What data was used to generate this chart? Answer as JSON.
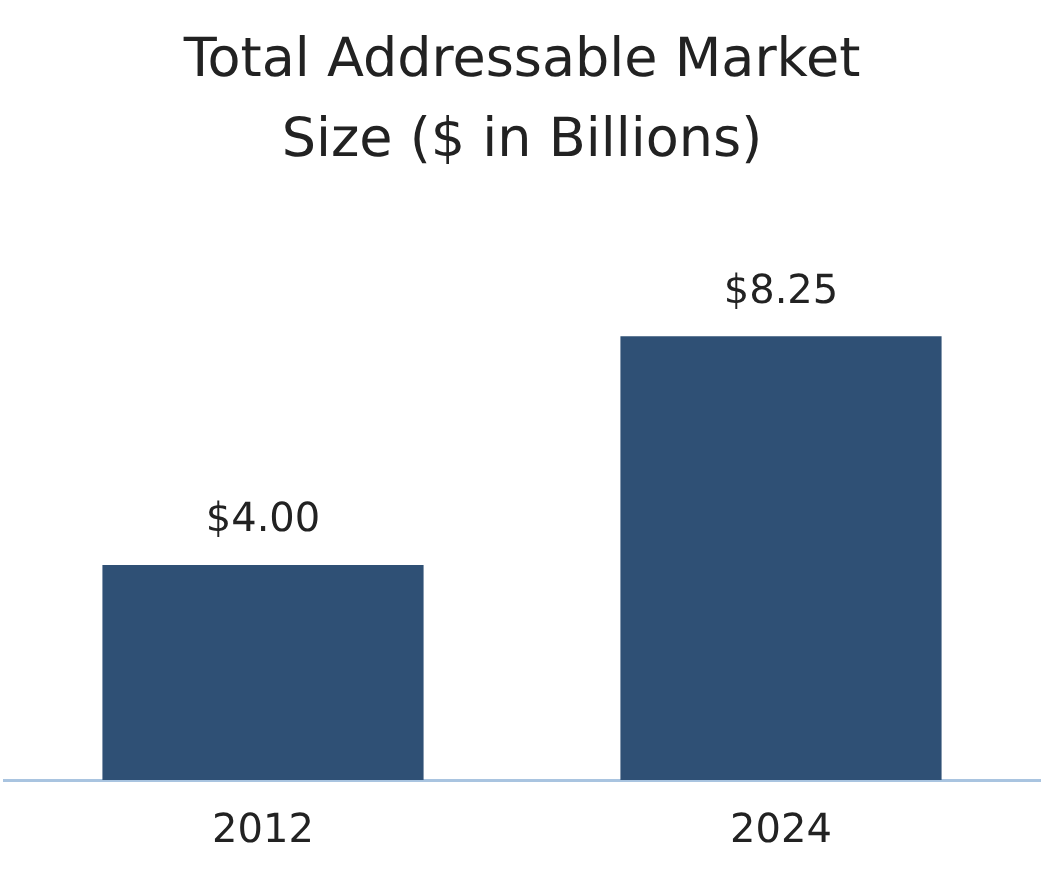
{
  "chart_data": {
    "type": "bar",
    "title": "Total Addressable Market Size ($ in Billions)",
    "categories": [
      "2012",
      "2024"
    ],
    "values": [
      4.0,
      8.25
    ],
    "value_labels": [
      "$4.00",
      "$8.25"
    ],
    "color": "#2f5075",
    "grid": false,
    "legend": false,
    "tick_labels": "x"
  }
}
